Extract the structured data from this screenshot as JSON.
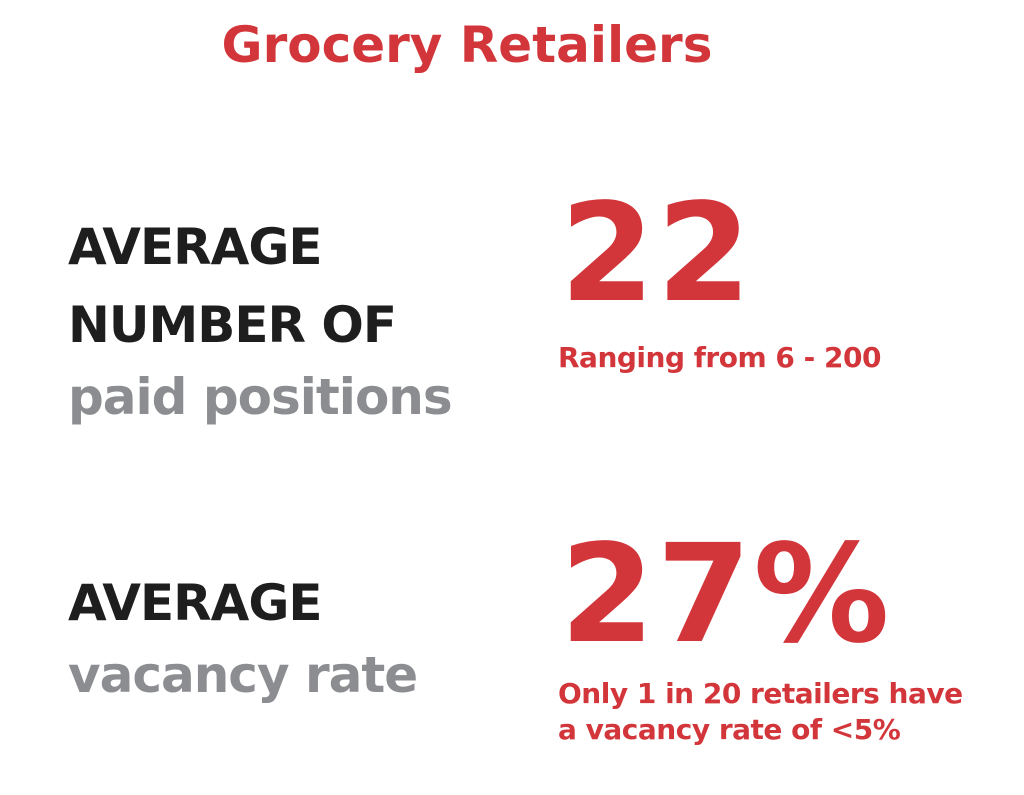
{
  "header": {
    "title": "Grocery Retailers"
  },
  "stats": [
    {
      "label_lines": [
        "AVERAGE",
        "NUMBER OF"
      ],
      "label_gray": "paid positions",
      "value": "22",
      "note_lines": [
        "Ranging from 6 - 200"
      ]
    },
    {
      "label_lines": [
        "AVERAGE"
      ],
      "label_gray": "vacancy rate",
      "value": "27%",
      "note_lines": [
        "Only 1 in 20 retailers have",
        "a vacancy rate of <5%"
      ]
    }
  ]
}
